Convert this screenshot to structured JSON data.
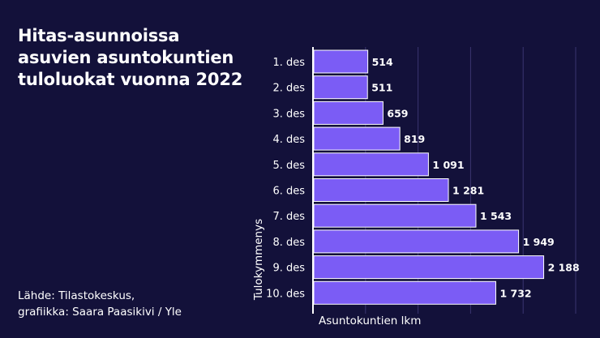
{
  "title_lines": [
    "Hitas-asunnoissa",
    "asuvien asuntokuntien",
    "tuloluokat vuonna 2022"
  ],
  "source_lines": [
    "Lähde: Tilastokeskus,",
    "grafiikka: Saara Paasikivi / Yle"
  ],
  "colors": {
    "background": "#13113a",
    "bar": "#7b5cf5",
    "bar_outline": "#ffffff",
    "grid": "#3a3570",
    "text": "#ffffff"
  },
  "chart_data": {
    "type": "bar",
    "orientation": "horizontal",
    "categories": [
      "1. des",
      "2. des",
      "3. des",
      "4. des",
      "5. des",
      "6. des",
      "7. des",
      "8. des",
      "9. des",
      "10. des"
    ],
    "values": [
      514,
      511,
      659,
      819,
      1091,
      1281,
      1543,
      1949,
      2188,
      1732
    ],
    "value_labels": [
      "514",
      "511",
      "659",
      "819",
      "1 091",
      "1 281",
      "1 543",
      "1 949",
      "2 188",
      "1 732"
    ],
    "xlabel": "Asuntokuntien lkm",
    "ylabel": "Tulokymmenys",
    "xlim": [
      0,
      2500
    ],
    "grid": true
  }
}
